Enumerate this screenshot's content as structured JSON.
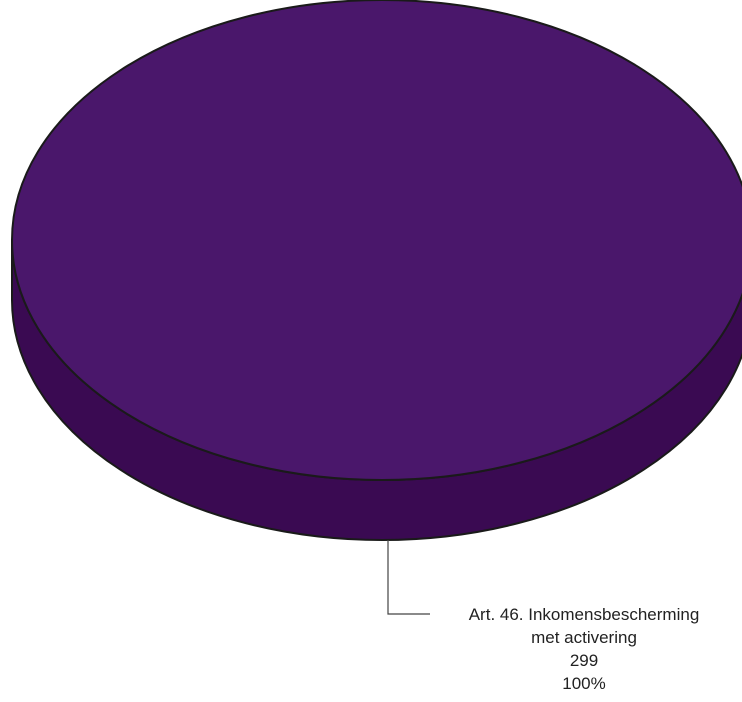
{
  "chart_data": {
    "type": "pie",
    "style": "3d",
    "title": "",
    "legend": "none",
    "slices": [
      {
        "label_lines": [
          "Art. 46. Inkomensbescherming",
          "met activering"
        ],
        "value": 299,
        "value_label": "299",
        "percent": 100,
        "percent_label": "100%",
        "color_top": "#4a176b",
        "color_side": "#3a0a52"
      }
    ]
  },
  "colors": {
    "outline": "#1a1a1a",
    "leader_line": "#444444",
    "label_text": "#222222"
  }
}
